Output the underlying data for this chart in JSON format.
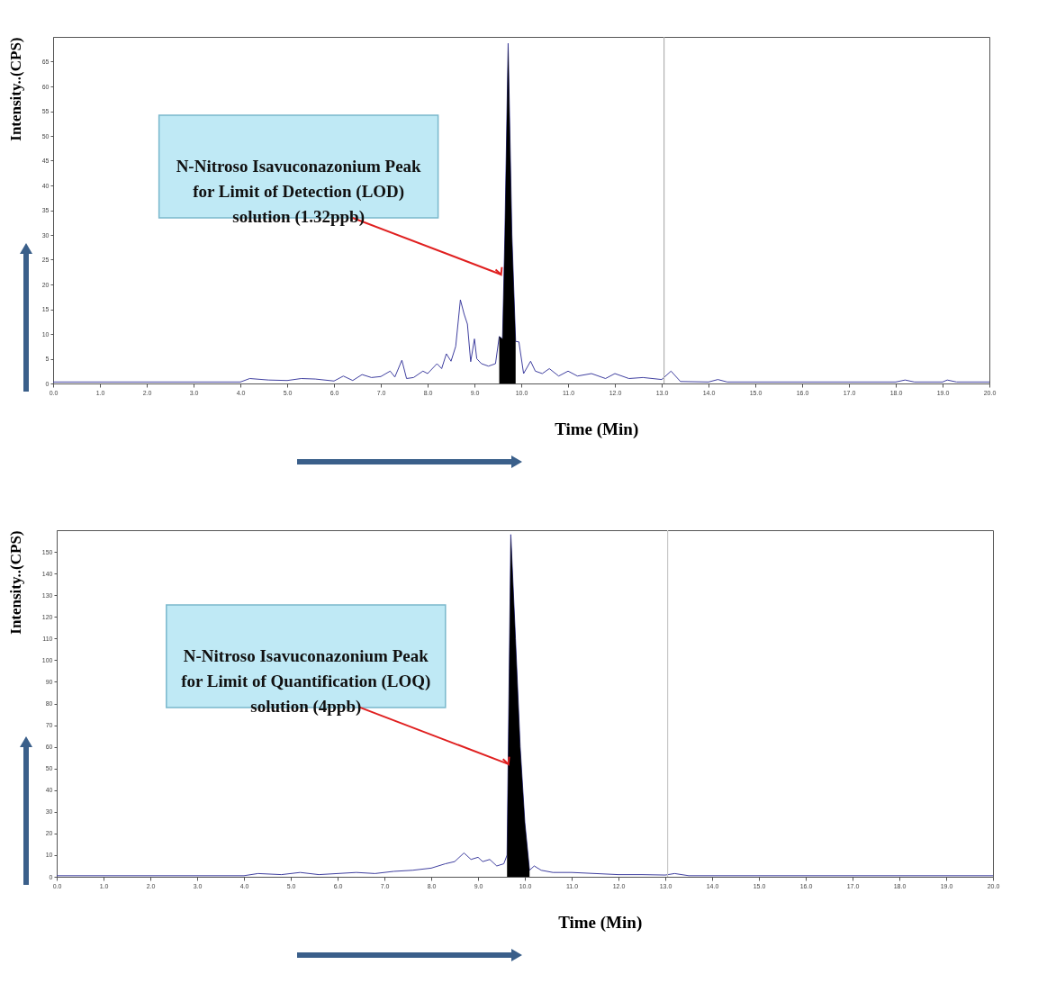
{
  "chart_data": [
    {
      "type": "line",
      "xlabel": "Time (Min)",
      "ylabel": "Intensity..(CPS)",
      "xlim": [
        0,
        20
      ],
      "xticks": [
        {
          "value": 0,
          "label": "0.0"
        },
        {
          "value": 1,
          "label": "1.0"
        },
        {
          "value": 2,
          "label": "2.0"
        },
        {
          "value": 3,
          "label": "3.0"
        },
        {
          "value": 4,
          "label": "4.0"
        },
        {
          "value": 5,
          "label": "5.0"
        },
        {
          "value": 6,
          "label": "6.0"
        },
        {
          "value": 7,
          "label": "7.0"
        },
        {
          "value": 8,
          "label": "8.0"
        },
        {
          "value": 9,
          "label": "9.0"
        },
        {
          "value": 10,
          "label": "10.0"
        },
        {
          "value": 11,
          "label": "11.0"
        },
        {
          "value": 12,
          "label": "12.0"
        },
        {
          "value": 13,
          "label": "13.0"
        },
        {
          "value": 14,
          "label": "14.0"
        },
        {
          "value": 15,
          "label": "15.0"
        },
        {
          "value": 16,
          "label": "16.0"
        },
        {
          "value": 17,
          "label": "17.0"
        },
        {
          "value": 18,
          "label": "18.0"
        },
        {
          "value": 19,
          "label": "19.0"
        },
        {
          "value": 20,
          "label": "20.0"
        }
      ],
      "ylim": [
        0,
        70
      ],
      "yticks": [
        0,
        5,
        10,
        15,
        20,
        25,
        30,
        35,
        40,
        45,
        50,
        55,
        60,
        65
      ],
      "grid": false,
      "series": [
        {
          "type": "line",
          "color": "#4040a0",
          "x": [
            0,
            2,
            4,
            4.2,
            4.6,
            5,
            5.3,
            5.6,
            6,
            6.2,
            6.4,
            6.6,
            6.8,
            7,
            7.2,
            7.3,
            7.45,
            7.55,
            7.7,
            7.9,
            8,
            8.2,
            8.3,
            8.4,
            8.5,
            8.6,
            8.7,
            8.78,
            8.85,
            8.92,
            9,
            9.05,
            9.15,
            9.3,
            9.45,
            9.53,
            9.6,
            9.65,
            9.72,
            9.8,
            9.88,
            9.95,
            10.05,
            10.2,
            10.3,
            10.45,
            10.6,
            10.8,
            11,
            11.2,
            11.5,
            11.8,
            12,
            12.3,
            12.6,
            13,
            13.2,
            13.4,
            14,
            14.2,
            14.4,
            18,
            18.2,
            18.4,
            19,
            19.1,
            19.3,
            20
          ],
          "values": [
            0.3,
            0.3,
            0.3,
            1,
            0.7,
            0.6,
            1,
            0.9,
            0.5,
            1.5,
            0.6,
            1.8,
            1.2,
            1.4,
            2.5,
            1.3,
            4.7,
            1,
            1.2,
            2.5,
            2,
            4,
            3,
            6,
            4.5,
            7.5,
            16.9,
            14,
            12,
            4.4,
            9,
            5,
            4,
            3.5,
            4,
            9.5,
            9,
            30,
            68.7,
            30,
            8.5,
            8.4,
            2,
            4.5,
            2.5,
            2,
            3,
            1.5,
            2.5,
            1.5,
            2,
            1,
            2,
            1,
            1.2,
            0.8,
            2.5,
            0.4,
            0.3,
            0.8,
            0.3,
            0.3,
            0.7,
            0.3,
            0.3,
            0.7,
            0.3,
            0.3
          ]
        },
        {
          "type": "area",
          "color": "#000000",
          "x": [
            9.53,
            9.6,
            9.65,
            9.72,
            9.8,
            9.88
          ],
          "values": [
            9.5,
            9,
            30,
            68.7,
            30,
            8.5
          ]
        }
      ],
      "ref_lines": [
        {
          "axis": "x",
          "value": 13.05,
          "color": "#b0b0b0"
        }
      ],
      "annotations": [
        {
          "text": "N-Nitroso Isavuconazonium Peak\nfor Limit of Detection (LOD)\nsolution (1.32ppb)",
          "x": 9.57,
          "y": 22
        }
      ]
    },
    {
      "type": "line",
      "xlabel": "Time (Min)",
      "ylabel": "Intensity..(CPS)",
      "xlim": [
        0,
        20
      ],
      "xticks": [
        {
          "value": 0,
          "label": "0.0"
        },
        {
          "value": 1,
          "label": "1.0"
        },
        {
          "value": 2,
          "label": "2.0"
        },
        {
          "value": 3,
          "label": "3.0"
        },
        {
          "value": 4,
          "label": "4.0"
        },
        {
          "value": 5,
          "label": "5.0"
        },
        {
          "value": 6,
          "label": "6.0"
        },
        {
          "value": 7,
          "label": "7.0"
        },
        {
          "value": 8,
          "label": "8.0"
        },
        {
          "value": 9,
          "label": "9.0"
        },
        {
          "value": 10,
          "label": "10.0"
        },
        {
          "value": 11,
          "label": "11.0"
        },
        {
          "value": 12,
          "label": "12.0"
        },
        {
          "value": 13,
          "label": "13.0"
        },
        {
          "value": 14,
          "label": "14.0"
        },
        {
          "value": 15,
          "label": "15.0"
        },
        {
          "value": 16,
          "label": "16.0"
        },
        {
          "value": 17,
          "label": "17.0"
        },
        {
          "value": 18,
          "label": "18.0"
        },
        {
          "value": 19,
          "label": "19.0"
        },
        {
          "value": 20,
          "label": "20.0"
        }
      ],
      "ylim": [
        0,
        160
      ],
      "yticks": [
        0,
        10,
        20,
        30,
        40,
        50,
        60,
        70,
        80,
        90,
        100,
        110,
        120,
        130,
        140,
        150
      ],
      "grid": false,
      "series": [
        {
          "type": "line",
          "color": "#4040a0",
          "x": [
            0,
            2,
            4,
            4.3,
            4.8,
            5.2,
            5.6,
            6,
            6.4,
            6.8,
            7.2,
            7.6,
            8,
            8.3,
            8.5,
            8.7,
            8.85,
            9,
            9.1,
            9.25,
            9.4,
            9.55,
            9.62,
            9.7,
            9.8,
            9.9,
            10,
            10.1,
            10.2,
            10.35,
            10.6,
            11,
            11.5,
            12,
            12.5,
            13,
            13.2,
            13.5,
            14,
            20
          ],
          "values": [
            0.5,
            0.5,
            0.5,
            1.5,
            1,
            2,
            1,
            1.5,
            2,
            1.5,
            2.5,
            3,
            4,
            6,
            7,
            11,
            8,
            9,
            7,
            8,
            5,
            6,
            10,
            158,
            110,
            60,
            25,
            3,
            5,
            3,
            2,
            2,
            1.5,
            1,
            1,
            0.8,
            1.5,
            0.5,
            0.5,
            0.5
          ]
        },
        {
          "type": "area",
          "color": "#000000",
          "x": [
            9.62,
            9.7,
            9.8,
            9.9,
            10,
            10.1
          ],
          "values": [
            10,
            158,
            110,
            60,
            25,
            3
          ]
        }
      ],
      "ref_lines": [
        {
          "axis": "x",
          "value": 13.05,
          "color": "#c8c8c8"
        }
      ],
      "annotations": [
        {
          "text": "N-Nitroso Isavuconazonium Peak\nfor Limit of Quantification (LOQ)\nsolution (4ppb)",
          "x": 9.65,
          "y": 52
        }
      ]
    }
  ]
}
